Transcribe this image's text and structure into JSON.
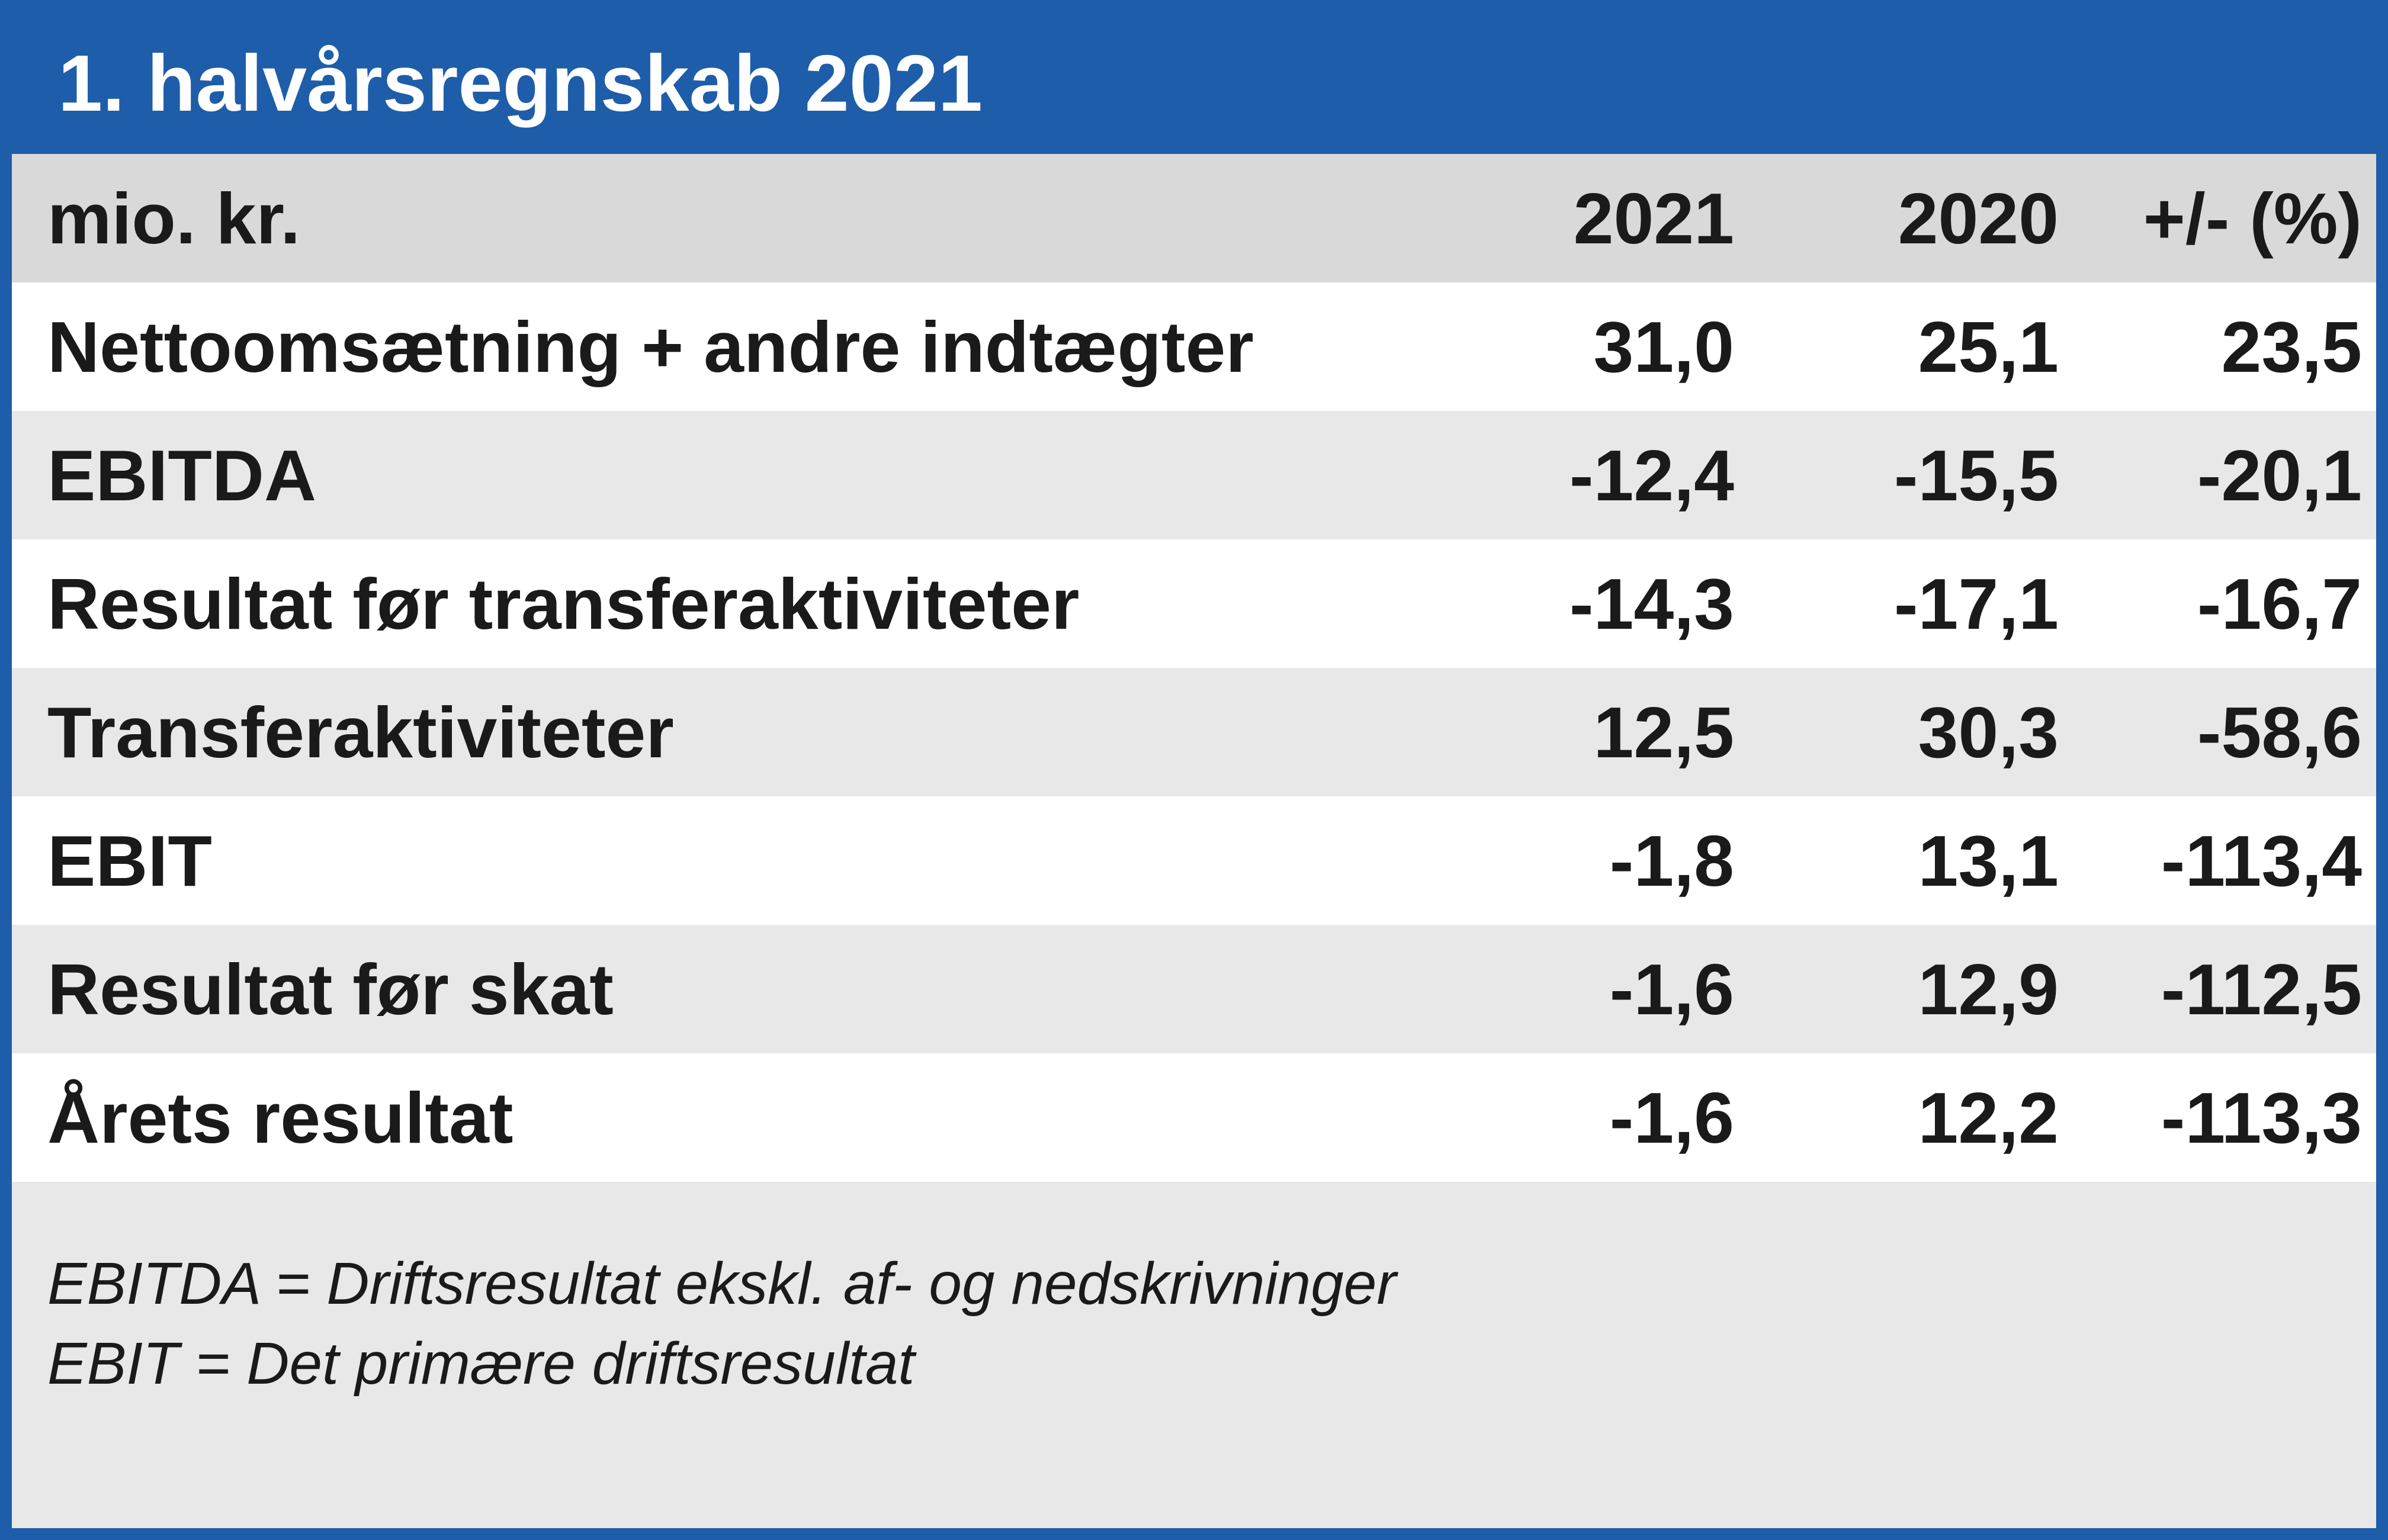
{
  "colors": {
    "accent": "#1E5DA9",
    "header_row_bg": "#D9D9D9",
    "stripe_bg": "#E8E8E8",
    "text": "#1A1A1A",
    "title_text": "#FFFFFF"
  },
  "header": {
    "title": "1. halvårsregnskab 2021"
  },
  "table": {
    "unit_label": "mio. kr.",
    "columns": [
      "2021",
      "2020",
      "+/- (%)"
    ],
    "rows": [
      {
        "label": "Nettoomsætning + andre indtægter",
        "values": [
          "31,0",
          "25,1",
          "23,5"
        ]
      },
      {
        "label": "EBITDA",
        "values": [
          "-12,4",
          "-15,5",
          "-20,1"
        ]
      },
      {
        "label": "Resultat før transferaktiviteter",
        "values": [
          "-14,3",
          "-17,1",
          "-16,7"
        ]
      },
      {
        "label": "Transferaktiviteter",
        "values": [
          "12,5",
          "30,3",
          "-58,6"
        ]
      },
      {
        "label": "EBIT",
        "values": [
          "-1,8",
          "13,1",
          "-113,4"
        ]
      },
      {
        "label": "Resultat før skat",
        "values": [
          "-1,6",
          "12,9",
          "-112,5"
        ]
      },
      {
        "label": "Årets resultat",
        "values": [
          "-1,6",
          "12,2",
          "-113,3"
        ]
      }
    ]
  },
  "footnotes": {
    "line1": "EBITDA = Driftsresultat ekskl. af- og nedskrivninger",
    "line2": "EBIT = Det primære driftsresultat"
  },
  "chart_data": {
    "type": "table",
    "title": "1. halvårsregnskab 2021",
    "unit": "mio. kr.",
    "columns": [
      "mio. kr.",
      "2021",
      "2020",
      "+/- (%)"
    ],
    "rows": [
      [
        "Nettoomsætning + andre indtægter",
        31.0,
        25.1,
        23.5
      ],
      [
        "EBITDA",
        -12.4,
        -15.5,
        -20.1
      ],
      [
        "Resultat før transferaktiviteter",
        -14.3,
        -17.1,
        -16.7
      ],
      [
        "Transferaktiviteter",
        12.5,
        30.3,
        -58.6
      ],
      [
        "EBIT",
        -1.8,
        13.1,
        -113.4
      ],
      [
        "Resultat før skat",
        -1.6,
        12.9,
        -112.5
      ],
      [
        "Årets resultat",
        -1.6,
        12.2,
        -113.3
      ]
    ],
    "footnotes": [
      "EBITDA = Driftsresultat ekskl. af- og nedskrivninger",
      "EBIT = Det primære driftsresultat"
    ]
  }
}
